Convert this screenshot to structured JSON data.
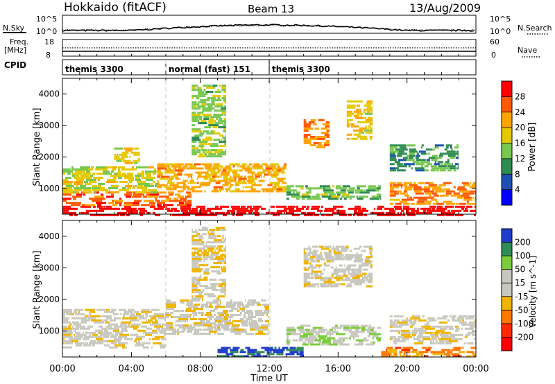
{
  "header": {
    "site": "Hokkaido (fitACF)",
    "beam": "Beam 13",
    "date": "13/Aug/2009"
  },
  "top_panels": {
    "nsky_label": "N.Sky",
    "nsky_ticks": [
      "10^5",
      "10^0"
    ],
    "nsky_right_ticks": [
      "10^5",
      "10^0"
    ],
    "nsearch_label": "N.Search",
    "freq_label_1": "Freq.",
    "freq_label_2": "[MHz]",
    "freq_ticks": [
      "18",
      "8"
    ],
    "nave_ticks": [
      "60",
      "0"
    ],
    "nave_label": "Nave",
    "cpid_label": "CPID",
    "cpid_segments": [
      {
        "label": "themis 3300",
        "start_hour": 0,
        "end_hour": 6
      },
      {
        "label": "normal (fast) 151",
        "start_hour": 6,
        "end_hour": 12
      },
      {
        "label": "themis 3300",
        "start_hour": 12,
        "end_hour": 24
      }
    ]
  },
  "power_colorbar": {
    "label": "Power [dB]",
    "ticks": [
      "28",
      "24",
      "20",
      "16",
      "12",
      "8",
      "4"
    ],
    "colors": [
      "#ff0000",
      "#ff5a00",
      "#ffa500",
      "#e6c800",
      "#78c850",
      "#2d8c50",
      "#1e50b4",
      "#0000ff"
    ]
  },
  "velocity_colorbar": {
    "label": "Velocity [m s^-1]",
    "ticks": [
      "200",
      "100",
      "50",
      "15",
      "-15",
      "-50",
      "-100",
      "-200"
    ],
    "colors": [
      "#1e3cc8",
      "#2e8b57",
      "#7ccd3c",
      "#c8c8be",
      "#c8c8be",
      "#f0b400",
      "#ff7800",
      "#ff2800",
      "#ff0000"
    ]
  },
  "axes": {
    "ylabel": "Slant Range [km]",
    "xlabel": "Time UT",
    "yticks": [
      "4000",
      "3000",
      "2000",
      "1000"
    ],
    "xticks": [
      "00:00",
      "04:00",
      "08:00",
      "12:00",
      "16:00",
      "20:00",
      "00:00"
    ]
  },
  "chart_data": {
    "type": "heatmap",
    "title": "Hokkaido (fitACF) Beam 13 13/Aug/2009",
    "xlabel": "Time UT",
    "ylabel": "Slant Range [km]",
    "xlim_hours": [
      0,
      24
    ],
    "ylim_km": [
      180,
      4500
    ],
    "panels": [
      {
        "name": "Power [dB]",
        "crange": [
          0,
          30
        ],
        "regions": [
          {
            "t0": 0.0,
            "t1": 24.0,
            "r0": 180,
            "r1": 450,
            "value": 30
          },
          {
            "t0": 0.0,
            "t1": 7.5,
            "r0": 450,
            "r1": 900,
            "value": 24
          },
          {
            "t0": 0.0,
            "t1": 5.5,
            "r0": 900,
            "r1": 1700,
            "value": 16
          },
          {
            "t0": 5.5,
            "t1": 13.0,
            "r0": 900,
            "r1": 1800,
            "value": 20
          },
          {
            "t0": 13.0,
            "t1": 18.5,
            "r0": 700,
            "r1": 1100,
            "value": 12
          },
          {
            "t0": 19.0,
            "t1": 24.0,
            "r0": 500,
            "r1": 1200,
            "value": 22
          },
          {
            "t0": 19.0,
            "t1": 23.0,
            "r0": 1600,
            "r1": 2400,
            "value": 10
          },
          {
            "t0": 14.0,
            "t1": 15.5,
            "r0": 2300,
            "r1": 3200,
            "value": 22
          },
          {
            "t0": 16.5,
            "t1": 18.0,
            "r0": 2600,
            "r1": 3800,
            "value": 18
          },
          {
            "t0": 7.5,
            "t1": 9.5,
            "r0": 2000,
            "r1": 4300,
            "value": 14
          },
          {
            "t0": 3.0,
            "t1": 4.5,
            "r0": 1800,
            "r1": 2300,
            "value": 16
          }
        ]
      },
      {
        "name": "Velocity [m s^-1]",
        "crange": [
          -200,
          200
        ],
        "regions": [
          {
            "t0": 0.0,
            "t1": 6.0,
            "r0": 500,
            "r1": 1700,
            "value": 0
          },
          {
            "t0": 6.0,
            "t1": 12.0,
            "r0": 900,
            "r1": 2000,
            "value": 0
          },
          {
            "t0": 9.0,
            "t1": 14.0,
            "r0": 180,
            "r1": 500,
            "value": 180
          },
          {
            "t0": 13.0,
            "t1": 18.5,
            "r0": 600,
            "r1": 1200,
            "value": 60
          },
          {
            "t0": 18.5,
            "t1": 24.0,
            "r0": 180,
            "r1": 500,
            "value": -80
          },
          {
            "t0": 19.0,
            "t1": 24.0,
            "r0": 600,
            "r1": 1500,
            "value": 0
          },
          {
            "t0": 14.0,
            "t1": 18.0,
            "r0": 2400,
            "r1": 3700,
            "value": 0
          },
          {
            "t0": 7.5,
            "t1": 9.5,
            "r0": 2000,
            "r1": 4300,
            "value": -20
          }
        ]
      }
    ]
  }
}
